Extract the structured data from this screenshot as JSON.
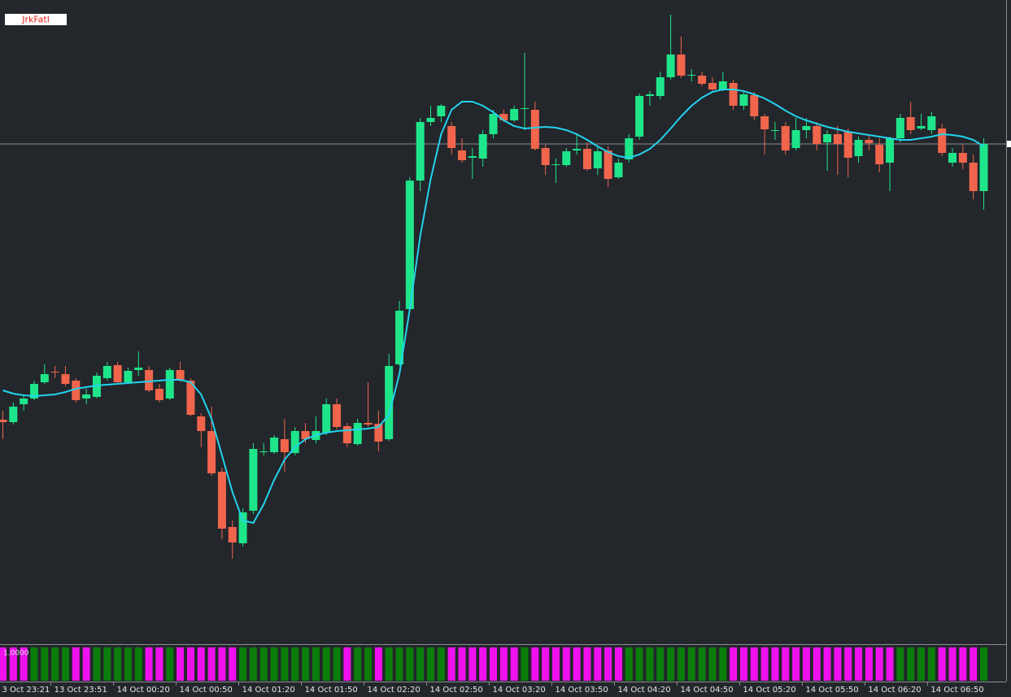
{
  "chart_data": {
    "type": "candlestick",
    "title": "JrkFatl",
    "categories": [
      "3 Oct 23:21",
      null,
      null,
      null,
      null,
      "13 Oct 23:51",
      null,
      null,
      null,
      null,
      null,
      "14 Oct 00:20",
      null,
      null,
      null,
      null,
      null,
      "14 Oct 00:50",
      null,
      null,
      null,
      null,
      null,
      "14 Oct 01:20",
      null,
      null,
      null,
      null,
      null,
      "14 Oct 01:50",
      null,
      null,
      null,
      null,
      null,
      "14 Oct 02:20",
      null,
      null,
      null,
      null,
      null,
      "14 Oct 02:50",
      null,
      null,
      null,
      null,
      null,
      "14 Oct 03:20",
      null,
      null,
      null,
      null,
      null,
      "14 Oct 03:50",
      null,
      null,
      null,
      null,
      null,
      "14 Oct 04:20",
      null,
      null,
      null,
      null,
      null,
      "14 Oct 04:50",
      null,
      null,
      null,
      null,
      null,
      "14 Oct 05:20",
      null,
      null,
      null,
      null,
      null,
      "14 Oct 05:50",
      null,
      null,
      null,
      null,
      null,
      "14 Oct 06:20",
      null,
      null,
      null,
      null,
      null,
      "14 Oct 06:50",
      null,
      null,
      null,
      null,
      null
    ],
    "open": [
      284,
      281,
      303,
      310,
      330,
      343,
      340,
      332,
      310,
      312,
      335,
      351,
      330,
      345,
      345,
      322,
      310,
      345,
      332,
      288,
      270,
      220,
      152,
      132,
      172,
      245,
      244,
      260,
      243,
      270,
      259,
      268,
      303,
      276,
      254,
      280,
      279,
      260,
      352,
      420,
      578,
      650,
      657,
      645,
      615,
      606,
      605,
      635,
      660,
      652,
      667,
      665,
      618,
      598,
      597,
      615,
      617,
      593,
      615,
      582,
      604,
      632,
      682,
      682,
      705,
      733,
      708,
      707,
      698,
      690,
      698,
      670,
      683,
      657,
      640,
      645,
      618,
      640,
      645,
      625,
      635,
      638,
      608,
      628,
      622,
      600,
      630,
      656,
      642,
      640,
      642,
      600,
      612,
      600,
      565
    ],
    "high": [
      295,
      305,
      315,
      332,
      352,
      350,
      350,
      335,
      322,
      342,
      355,
      355,
      348,
      368,
      350,
      328,
      348,
      355,
      335,
      292,
      300,
      225,
      160,
      175,
      255,
      255,
      265,
      285,
      275,
      280,
      288,
      310,
      310,
      280,
      285,
      330,
      295,
      365,
      430,
      582,
      655,
      670,
      672,
      650,
      630,
      618,
      640,
      665,
      665,
      670,
      735,
      675,
      622,
      605,
      618,
      635,
      625,
      620,
      620,
      605,
      635,
      685,
      688,
      712,
      782,
      755,
      715,
      712,
      705,
      712,
      702,
      688,
      687,
      660,
      650,
      650,
      655,
      655,
      650,
      640,
      645,
      642,
      632,
      635,
      630,
      632,
      660,
      675,
      660,
      662,
      648,
      618,
      622,
      610,
      630
    ],
    "low": [
      260,
      278,
      295,
      308,
      328,
      335,
      325,
      305,
      303,
      310,
      332,
      328,
      328,
      338,
      318,
      305,
      308,
      330,
      288,
      250,
      215,
      137,
      113,
      128,
      168,
      240,
      242,
      220,
      240,
      255,
      255,
      265,
      272,
      250,
      252,
      275,
      245,
      258,
      350,
      418,
      565,
      645,
      650,
      610,
      600,
      580,
      595,
      630,
      650,
      650,
      640,
      615,
      585,
      575,
      595,
      610,
      590,
      585,
      570,
      580,
      600,
      628,
      670,
      678,
      702,
      704,
      700,
      694,
      688,
      688,
      665,
      665,
      652,
      610,
      628,
      610,
      615,
      630,
      615,
      590,
      585,
      582,
      600,
      615,
      588,
      565,
      625,
      635,
      640,
      635,
      608,
      595,
      592,
      555,
      542
    ],
    "close": [
      281,
      300,
      310,
      328,
      340,
      342,
      328,
      308,
      315,
      338,
      350,
      330,
      344,
      348,
      320,
      308,
      345,
      332,
      290,
      270,
      218,
      150,
      133,
      170,
      248,
      245,
      262,
      244,
      270,
      260,
      270,
      303,
      275,
      255,
      280,
      278,
      257,
      350,
      418,
      578,
      650,
      655,
      670,
      618,
      603,
      608,
      635,
      660,
      652,
      666,
      667,
      617,
      597,
      598,
      614,
      617,
      592,
      614,
      580,
      600,
      630,
      682,
      684,
      705,
      733,
      707,
      708,
      697,
      690,
      700,
      670,
      684,
      657,
      641,
      640,
      615,
      640,
      645,
      623,
      635,
      623,
      606,
      628,
      624,
      598,
      630,
      655,
      640,
      645,
      657,
      612,
      612,
      600,
      565,
      623
    ],
    "up_color": "#1fe58a",
    "down_color": "#f0654c",
    "ylim": [
      10,
      800
    ],
    "ma": {
      "color": "#22d3ee",
      "values": [
        320,
        316,
        314,
        313,
        314,
        315,
        318,
        322,
        324,
        326,
        327,
        328,
        329,
        330,
        331,
        332,
        333,
        333,
        330,
        315,
        285,
        240,
        195,
        160,
        157,
        180,
        210,
        235,
        250,
        260,
        265,
        268,
        270,
        271,
        272,
        273,
        275,
        290,
        340,
        420,
        510,
        580,
        635,
        665,
        675,
        675,
        670,
        662,
        652,
        645,
        642,
        643,
        644,
        643,
        640,
        635,
        628,
        620,
        613,
        608,
        606,
        610,
        617,
        628,
        642,
        657,
        670,
        680,
        687,
        690,
        690,
        688,
        684,
        679,
        672,
        664,
        657,
        652,
        648,
        644,
        641,
        638,
        636,
        634,
        632,
        630,
        628,
        628,
        630,
        632,
        635,
        634,
        632,
        628,
        620
      ]
    },
    "indicator": {
      "label": "1.0000",
      "colors": [
        "#ee11ee",
        "#ee11ee",
        "#ee11ee",
        "#0b7d0b",
        "#0b7d0b",
        "#0b7d0b",
        "#0b7d0b",
        "#ee11ee",
        "#ee11ee",
        "#0b7d0b",
        "#0b7d0b",
        "#0b7d0b",
        "#0b7d0b",
        "#0b7d0b",
        "#ee11ee",
        "#ee11ee",
        "#0b7d0b",
        "#ee11ee",
        "#ee11ee",
        "#ee11ee",
        "#ee11ee",
        "#ee11ee",
        "#ee11ee",
        "#0b7d0b",
        "#0b7d0b",
        "#0b7d0b",
        "#0b7d0b",
        "#0b7d0b",
        "#0b7d0b",
        "#0b7d0b",
        "#0b7d0b",
        "#0b7d0b",
        "#0b7d0b",
        "#ee11ee",
        "#0b7d0b",
        "#0b7d0b",
        "#ee11ee",
        "#0b7d0b",
        "#0b7d0b",
        "#0b7d0b",
        "#0b7d0b",
        "#0b7d0b",
        "#0b7d0b",
        "#ee11ee",
        "#ee11ee",
        "#ee11ee",
        "#ee11ee",
        "#ee11ee",
        "#ee11ee",
        "#ee11ee",
        "#0b7d0b",
        "#ee11ee",
        "#ee11ee",
        "#ee11ee",
        "#ee11ee",
        "#ee11ee",
        "#ee11ee",
        "#ee11ee",
        "#ee11ee",
        "#ee11ee",
        "#0b7d0b",
        "#0b7d0b",
        "#0b7d0b",
        "#0b7d0b",
        "#0b7d0b",
        "#0b7d0b",
        "#0b7d0b",
        "#0b7d0b",
        "#0b7d0b",
        "#0b7d0b",
        "#ee11ee",
        "#ee11ee",
        "#ee11ee",
        "#ee11ee",
        "#ee11ee",
        "#ee11ee",
        "#ee11ee",
        "#ee11ee",
        "#ee11ee",
        "#ee11ee",
        "#ee11ee",
        "#ee11ee",
        "#ee11ee",
        "#ee11ee",
        "#ee11ee",
        "#ee11ee",
        "#0b7d0b",
        "#0b7d0b",
        "#0b7d0b",
        "#0b7d0b",
        "#ee11ee",
        "#ee11ee",
        "#ee11ee",
        "#ee11ee",
        "#0b7d0b"
      ]
    }
  }
}
